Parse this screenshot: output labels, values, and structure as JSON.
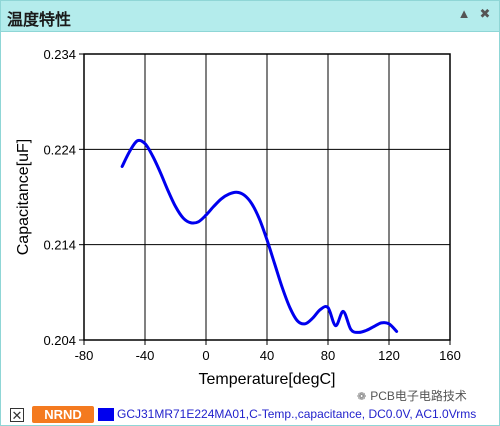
{
  "window": {
    "title": "温度特性",
    "collapse_glyph": "▲",
    "close_glyph": "✖"
  },
  "chart_data": {
    "type": "line",
    "xlabel": "Temperature[degC]",
    "ylabel": "Capacitance[uF]",
    "xlim": [
      -80,
      160
    ],
    "ylim": [
      0.204,
      0.234
    ],
    "x_ticks": [
      -80,
      -40,
      0,
      40,
      80,
      120,
      160
    ],
    "y_ticks": [
      0.204,
      0.214,
      0.224,
      0.234
    ],
    "x_tick_labels": [
      "-80",
      "-40",
      "0",
      "40",
      "80",
      "120",
      "160"
    ],
    "y_tick_labels": [
      "0.204",
      "0.214",
      "0.224",
      "0.234"
    ],
    "grid": true,
    "line_color": "#0000ee",
    "series": [
      {
        "x": [
          -55,
          -50,
          -45,
          -40,
          -35,
          -30,
          -25,
          -20,
          -15,
          -10,
          -5,
          0,
          5,
          10,
          15,
          20,
          25,
          30,
          35,
          40,
          45,
          50,
          55,
          60,
          65,
          70,
          75,
          80,
          85,
          90,
          95,
          100,
          105,
          110,
          115,
          120,
          125
        ],
        "y": [
          0.2222,
          0.2238,
          0.2249,
          0.2246,
          0.2233,
          0.2216,
          0.2197,
          0.218,
          0.2168,
          0.2163,
          0.2164,
          0.2171,
          0.218,
          0.2188,
          0.2193,
          0.2195,
          0.2192,
          0.2183,
          0.2167,
          0.2145,
          0.212,
          0.2095,
          0.2074,
          0.206,
          0.2057,
          0.2063,
          0.2072,
          0.2074,
          0.2055,
          0.207,
          0.2051,
          0.2048,
          0.205,
          0.2054,
          0.2058,
          0.2057,
          0.2049
        ]
      }
    ]
  },
  "legend": {
    "checkbox_glyph": "✕",
    "badge": "NRND",
    "series_label": "GCJ31MR71E224MA01,C-Temp.,capacitance, DC0.0V, AC1.0Vrms"
  },
  "watermark": {
    "icon": "wechat-icon",
    "text": "PCB电子电路技术"
  }
}
